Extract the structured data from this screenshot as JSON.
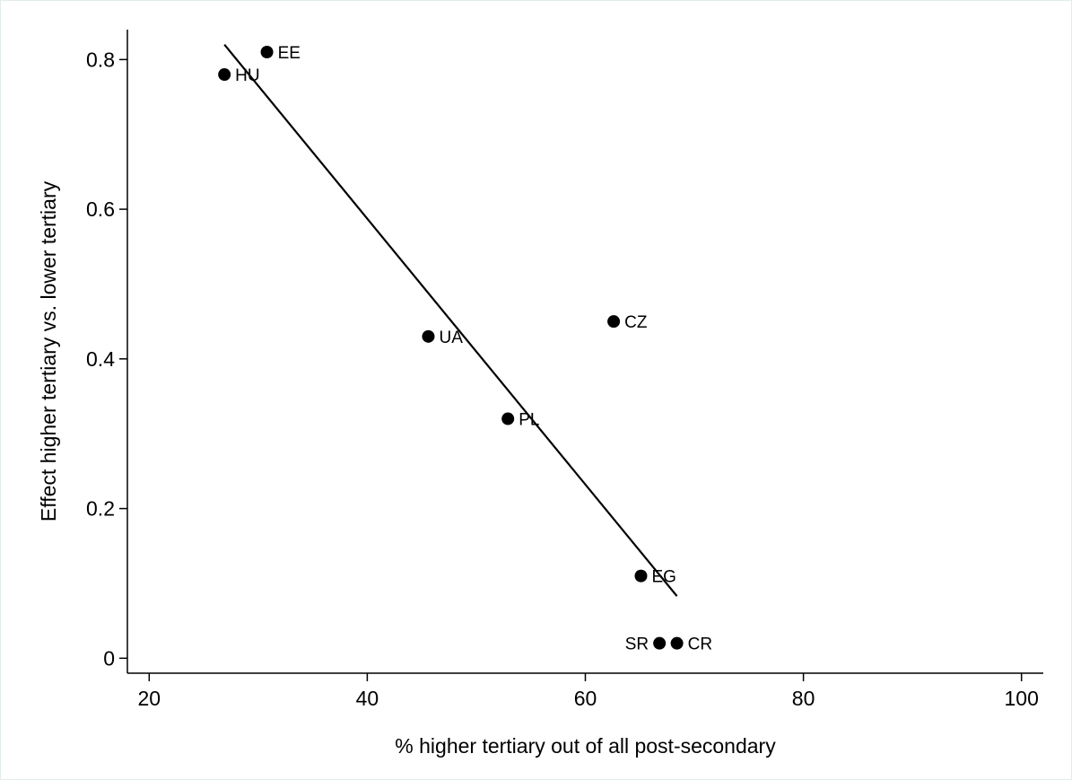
{
  "chart_data": {
    "type": "scatter",
    "title": "",
    "xlabel": "% higher tertiary out of all post-secondary",
    "ylabel": "Effect higher tertiary vs. lower tertiary",
    "xlim": [
      18,
      102
    ],
    "ylim": [
      -0.02,
      0.84
    ],
    "xticks": [
      20,
      40,
      60,
      80,
      100
    ],
    "yticks": [
      0,
      0.2,
      0.4,
      0.6,
      0.8
    ],
    "xtick_labels": [
      "20",
      "40",
      "60",
      "80",
      "100"
    ],
    "ytick_labels": [
      "0",
      "0.2",
      "0.4",
      "0.6",
      "0.8"
    ],
    "grid": false,
    "marker_color": "#000000",
    "points": [
      {
        "label": "EE",
        "x": 30.8,
        "y": 0.81,
        "label_side": "right"
      },
      {
        "label": "HU",
        "x": 26.9,
        "y": 0.78,
        "label_side": "right"
      },
      {
        "label": "CZ",
        "x": 62.6,
        "y": 0.45,
        "label_side": "right"
      },
      {
        "label": "UA",
        "x": 45.6,
        "y": 0.43,
        "label_side": "right"
      },
      {
        "label": "PL",
        "x": 52.9,
        "y": 0.32,
        "label_side": "right"
      },
      {
        "label": "EG",
        "x": 65.1,
        "y": 0.11,
        "label_side": "right"
      },
      {
        "label": "SR",
        "x": 66.8,
        "y": 0.02,
        "label_side": "left"
      },
      {
        "label": "CR",
        "x": 68.4,
        "y": 0.02,
        "label_side": "right"
      }
    ],
    "fit_line": {
      "x": [
        26.9,
        68.4
      ],
      "y": [
        0.82,
        0.083
      ]
    }
  }
}
